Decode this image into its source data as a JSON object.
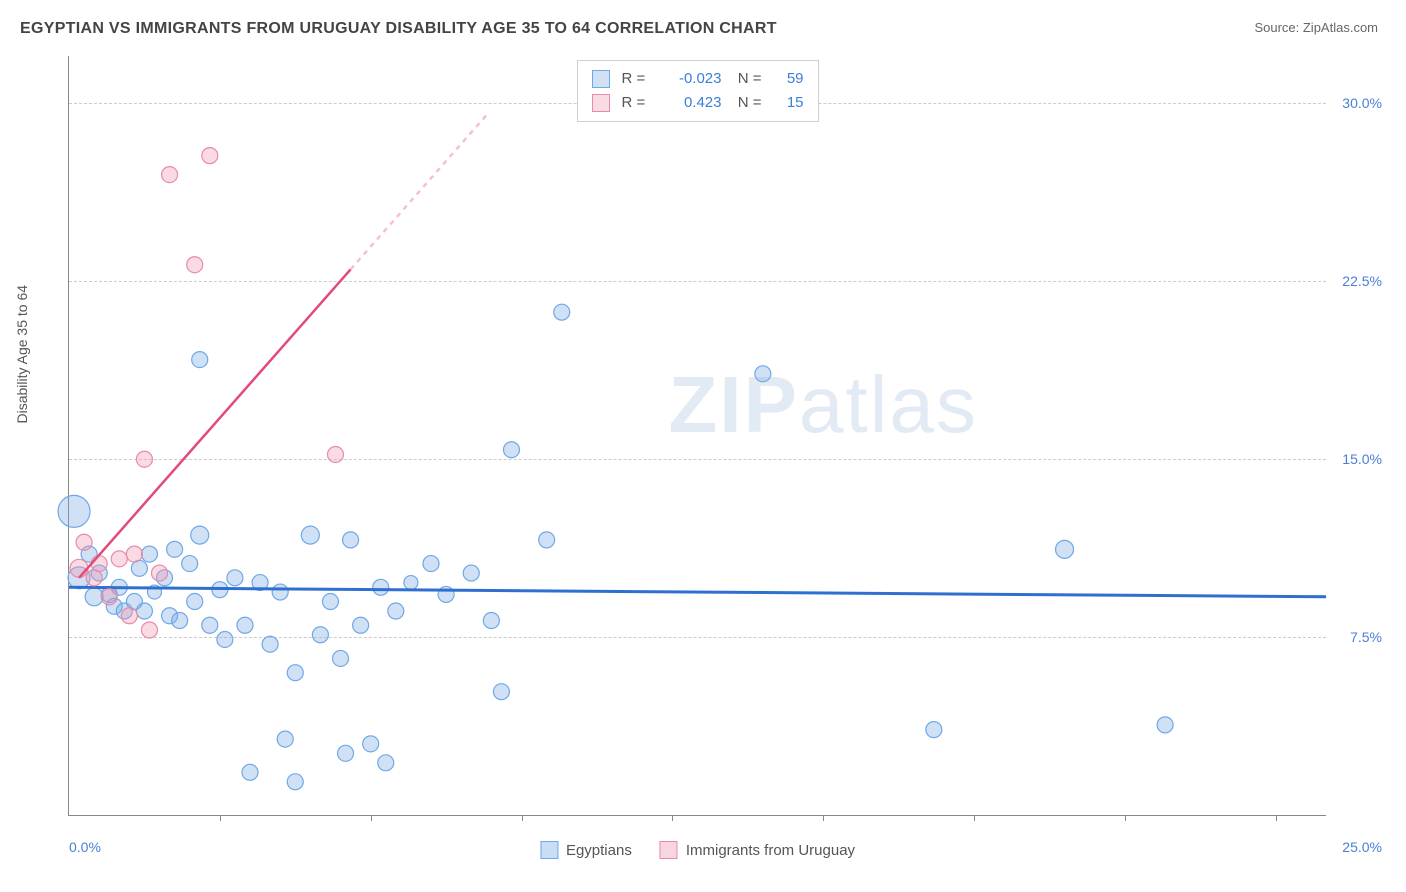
{
  "header": {
    "title": "EGYPTIAN VS IMMIGRANTS FROM URUGUAY DISABILITY AGE 35 TO 64 CORRELATION CHART",
    "source": "Source: ZipAtlas.com"
  },
  "watermark": {
    "zip": "ZIP",
    "atlas": "atlas"
  },
  "chart": {
    "type": "scatter",
    "ylabel": "Disability Age 35 to 64",
    "background_color": "#ffffff",
    "grid_color": "#cccccc",
    "axis_color": "#888888",
    "xlim": [
      0,
      25
    ],
    "ylim": [
      0,
      32
    ],
    "yticks": [
      7.5,
      15.0,
      22.5,
      30.0
    ],
    "ytick_labels": [
      "7.5%",
      "15.0%",
      "22.5%",
      "30.0%"
    ],
    "xticks": [
      3,
      6,
      9,
      12,
      15,
      18,
      21,
      24
    ],
    "xlabel_min": "0.0%",
    "xlabel_max": "25.0%",
    "series": [
      {
        "name": "Egyptians",
        "color_fill": "rgba(120,170,230,0.35)",
        "color_stroke": "#6fa8e6",
        "trend_color": "#2f6fd0",
        "trend_width": 3,
        "r_value": "-0.023",
        "n_value": "59",
        "trend": {
          "x1": 0,
          "y1": 9.6,
          "x2": 25,
          "y2": 9.2
        },
        "points": [
          {
            "x": 0.1,
            "y": 12.8,
            "r": 16
          },
          {
            "x": 0.2,
            "y": 10.0,
            "r": 11
          },
          {
            "x": 0.4,
            "y": 11.0,
            "r": 8
          },
          {
            "x": 0.5,
            "y": 9.2,
            "r": 9
          },
          {
            "x": 0.6,
            "y": 10.2,
            "r": 8
          },
          {
            "x": 0.8,
            "y": 9.3,
            "r": 8
          },
          {
            "x": 0.9,
            "y": 8.8,
            "r": 8
          },
          {
            "x": 1.0,
            "y": 9.6,
            "r": 8
          },
          {
            "x": 1.1,
            "y": 8.6,
            "r": 8
          },
          {
            "x": 1.3,
            "y": 9.0,
            "r": 8
          },
          {
            "x": 1.4,
            "y": 10.4,
            "r": 8
          },
          {
            "x": 1.5,
            "y": 8.6,
            "r": 8
          },
          {
            "x": 1.6,
            "y": 11.0,
            "r": 8
          },
          {
            "x": 1.7,
            "y": 9.4,
            "r": 7
          },
          {
            "x": 1.9,
            "y": 10.0,
            "r": 8
          },
          {
            "x": 2.0,
            "y": 8.4,
            "r": 8
          },
          {
            "x": 2.1,
            "y": 11.2,
            "r": 8
          },
          {
            "x": 2.2,
            "y": 8.2,
            "r": 8
          },
          {
            "x": 2.4,
            "y": 10.6,
            "r": 8
          },
          {
            "x": 2.5,
            "y": 9.0,
            "r": 8
          },
          {
            "x": 2.6,
            "y": 11.8,
            "r": 9
          },
          {
            "x": 2.8,
            "y": 8.0,
            "r": 8
          },
          {
            "x": 2.6,
            "y": 19.2,
            "r": 8
          },
          {
            "x": 3.0,
            "y": 9.5,
            "r": 8
          },
          {
            "x": 3.1,
            "y": 7.4,
            "r": 8
          },
          {
            "x": 3.3,
            "y": 10.0,
            "r": 8
          },
          {
            "x": 3.5,
            "y": 8.0,
            "r": 8
          },
          {
            "x": 3.6,
            "y": 1.8,
            "r": 8
          },
          {
            "x": 3.8,
            "y": 9.8,
            "r": 8
          },
          {
            "x": 4.0,
            "y": 7.2,
            "r": 8
          },
          {
            "x": 4.2,
            "y": 9.4,
            "r": 8
          },
          {
            "x": 4.3,
            "y": 3.2,
            "r": 8
          },
          {
            "x": 4.5,
            "y": 6.0,
            "r": 8
          },
          {
            "x": 4.5,
            "y": 1.4,
            "r": 8
          },
          {
            "x": 4.8,
            "y": 11.8,
            "r": 9
          },
          {
            "x": 5.0,
            "y": 7.6,
            "r": 8
          },
          {
            "x": 5.2,
            "y": 9.0,
            "r": 8
          },
          {
            "x": 5.4,
            "y": 6.6,
            "r": 8
          },
          {
            "x": 5.5,
            "y": 2.6,
            "r": 8
          },
          {
            "x": 5.6,
            "y": 11.6,
            "r": 8
          },
          {
            "x": 5.8,
            "y": 8.0,
            "r": 8
          },
          {
            "x": 6.0,
            "y": 3.0,
            "r": 8
          },
          {
            "x": 6.2,
            "y": 9.6,
            "r": 8
          },
          {
            "x": 6.3,
            "y": 2.2,
            "r": 8
          },
          {
            "x": 6.5,
            "y": 8.6,
            "r": 8
          },
          {
            "x": 6.8,
            "y": 9.8,
            "r": 7
          },
          {
            "x": 7.2,
            "y": 10.6,
            "r": 8
          },
          {
            "x": 7.5,
            "y": 9.3,
            "r": 8
          },
          {
            "x": 8.0,
            "y": 10.2,
            "r": 8
          },
          {
            "x": 8.4,
            "y": 8.2,
            "r": 8
          },
          {
            "x": 8.6,
            "y": 5.2,
            "r": 8
          },
          {
            "x": 8.8,
            "y": 15.4,
            "r": 8
          },
          {
            "x": 9.5,
            "y": 11.6,
            "r": 8
          },
          {
            "x": 9.8,
            "y": 21.2,
            "r": 8
          },
          {
            "x": 13.8,
            "y": 18.6,
            "r": 8
          },
          {
            "x": 17.2,
            "y": 3.6,
            "r": 8
          },
          {
            "x": 19.8,
            "y": 11.2,
            "r": 9
          },
          {
            "x": 21.8,
            "y": 3.8,
            "r": 8
          }
        ]
      },
      {
        "name": "Immigrants from Uruguay",
        "color_fill": "rgba(240,150,175,0.35)",
        "color_stroke": "#e88ba8",
        "trend_color": "#e24a7a",
        "trend_width": 2.5,
        "trend_dashed_color": "rgba(226,74,122,0.35)",
        "r_value": "0.423",
        "n_value": "15",
        "trend": {
          "x1": 0.2,
          "y1": 10.0,
          "x2": 5.6,
          "y2": 23.0
        },
        "trend_dashed": {
          "x1": 5.6,
          "y1": 23.0,
          "x2": 8.3,
          "y2": 29.5
        },
        "points": [
          {
            "x": 0.2,
            "y": 10.4,
            "r": 9
          },
          {
            "x": 0.3,
            "y": 11.5,
            "r": 8
          },
          {
            "x": 0.5,
            "y": 10.0,
            "r": 8
          },
          {
            "x": 0.6,
            "y": 10.6,
            "r": 8
          },
          {
            "x": 0.8,
            "y": 9.2,
            "r": 8
          },
          {
            "x": 1.0,
            "y": 10.8,
            "r": 8
          },
          {
            "x": 1.2,
            "y": 8.4,
            "r": 8
          },
          {
            "x": 1.3,
            "y": 11.0,
            "r": 8
          },
          {
            "x": 1.5,
            "y": 15.0,
            "r": 8
          },
          {
            "x": 1.6,
            "y": 7.8,
            "r": 8
          },
          {
            "x": 1.8,
            "y": 10.2,
            "r": 8
          },
          {
            "x": 2.0,
            "y": 27.0,
            "r": 8
          },
          {
            "x": 2.5,
            "y": 23.2,
            "r": 8
          },
          {
            "x": 2.8,
            "y": 27.8,
            "r": 8
          },
          {
            "x": 5.3,
            "y": 15.2,
            "r": 8
          }
        ]
      }
    ],
    "legend_top": {
      "r_label": "R =",
      "n_label": "N ="
    },
    "legend_bottom": [
      {
        "label": "Egyptians",
        "fill": "rgba(120,170,230,0.4)",
        "stroke": "#6fa8e6"
      },
      {
        "label": "Immigrants from Uruguay",
        "fill": "rgba(240,150,175,0.4)",
        "stroke": "#e88ba8"
      }
    ]
  }
}
